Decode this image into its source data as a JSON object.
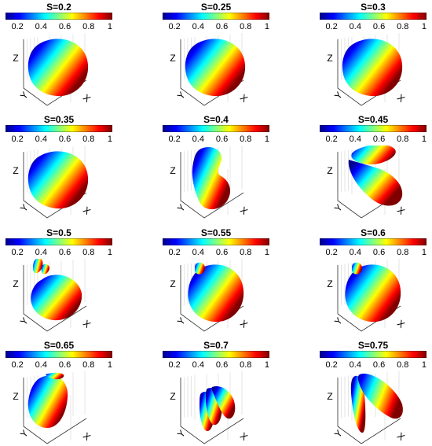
{
  "chart_data": {
    "type": "surface-3d-grid",
    "colormap": "jet",
    "colorbar": {
      "ticks": [
        "0.2",
        "0.4",
        "0.6",
        "0.8",
        "1"
      ],
      "range": [
        0.1,
        1
      ]
    },
    "axis_labels": {
      "x": "X",
      "y": "Y",
      "z": "Z"
    },
    "panels": [
      {
        "title": "S=0.2",
        "shape": "sphere"
      },
      {
        "title": "S=0.25",
        "shape": "sphere"
      },
      {
        "title": "S=0.3",
        "shape": "sphere"
      },
      {
        "title": "S=0.35",
        "shape": "sphere"
      },
      {
        "title": "S=0.4",
        "shape": "kidney"
      },
      {
        "title": "S=0.45",
        "shape": "split"
      },
      {
        "title": "S=0.5",
        "shape": "lobed"
      },
      {
        "title": "S=0.55",
        "shape": "sphere-small-lobe"
      },
      {
        "title": "S=0.6",
        "shape": "sphere-small-lobe"
      },
      {
        "title": "S=0.65",
        "shape": "egg"
      },
      {
        "title": "S=0.7",
        "shape": "fingers"
      },
      {
        "title": "S=0.75",
        "shape": "two-lobes"
      }
    ]
  }
}
